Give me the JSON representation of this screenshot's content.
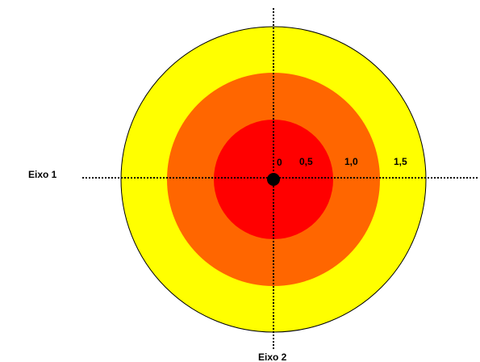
{
  "diagram": {
    "axis_1_label": "Eixo 1",
    "axis_2_label": "Eixo 2",
    "rings": [
      {
        "name": "outer-ring",
        "radius_value": "1,5",
        "color": "#FFFF00"
      },
      {
        "name": "middle-ring",
        "radius_value": "1,0",
        "color": "#FF6600"
      },
      {
        "name": "inner-ring",
        "radius_value": "0,5",
        "color": "#FF0000"
      }
    ],
    "center_label": "0",
    "center_dot_color": "#000000",
    "axis_line_color": "#000000"
  }
}
